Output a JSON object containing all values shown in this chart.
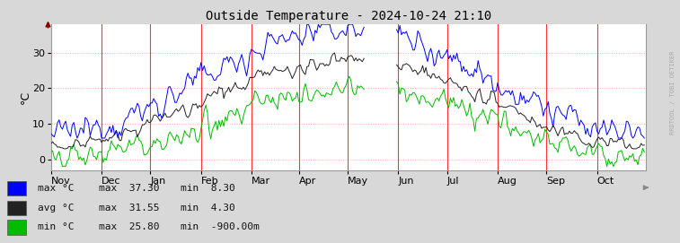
{
  "title": "Outside Temperature - 2024-10-24 21:10",
  "ylabel": "°C",
  "bg_color": "#d8d8d8",
  "plot_bg_color": "#ffffff",
  "grid_color": "#ffaaaa",
  "line_colors": {
    "max": "#0000ff",
    "avg": "#222222",
    "min": "#00bb00"
  },
  "red_line_color": "#ff3333",
  "arrow_color": "#880000",
  "yticks": [
    0,
    10,
    20,
    30
  ],
  "ylim": [
    -3,
    38
  ],
  "xlabel_months": [
    "Nov",
    "Dec",
    "Jan",
    "Feb",
    "Mar",
    "Apr",
    "May",
    "Jun",
    "Jul",
    "Aug",
    "Sep",
    "Oct"
  ],
  "legend_items": [
    {
      "color": "#0000ff",
      "label": "max °C",
      "stat_max": "37.30",
      "stat_min": "8.30"
    },
    {
      "color": "#222222",
      "label": "avg °C",
      "stat_max": "31.55",
      "stat_min": "4.30"
    },
    {
      "color": "#00bb00",
      "label": "min °C",
      "stat_max": "25.80",
      "stat_min": "-900.00m"
    }
  ],
  "right_text": "RRDTOOL / TOBI OETIKER",
  "figsize": [
    7.57,
    2.71
  ],
  "dpi": 100
}
